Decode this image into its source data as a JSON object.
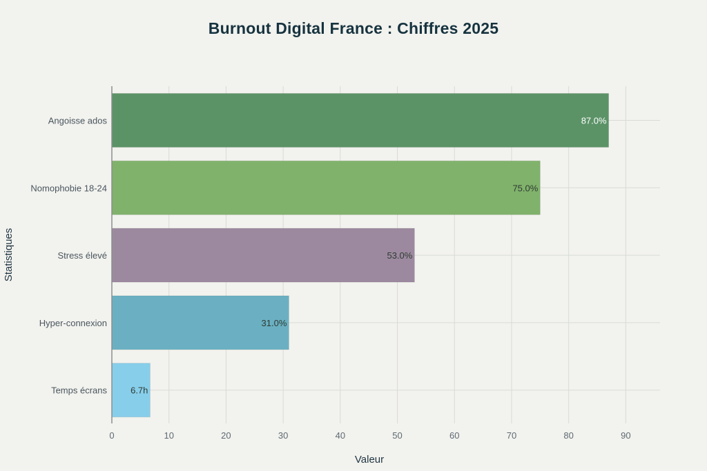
{
  "chart_data": {
    "type": "bar",
    "orientation": "horizontal",
    "title": "Burnout Digital France : Chiffres 2025",
    "xlabel": "Valeur",
    "ylabel": "Statistiques",
    "categories": [
      "Angoisse ados",
      "Nomophobie 18-24",
      "Stress élevé",
      "Hyper-connexion",
      "Temps écrans"
    ],
    "values": [
      87.0,
      75.0,
      53.0,
      31.0,
      6.7
    ],
    "data_labels": [
      "87.0%",
      "75.0%",
      "53.0%",
      "31.0%",
      "6.7h"
    ],
    "colors": [
      "#5b9367",
      "#80b26b",
      "#9c899f",
      "#6ab0c2",
      "#87ceeb"
    ],
    "label_colors": [
      "#ffffff",
      "#2f3b33",
      "#2f3b33",
      "#2f3b33",
      "#2f3b33"
    ],
    "xlim": [
      0,
      96
    ],
    "xticks": [
      0,
      10,
      20,
      30,
      40,
      50,
      60,
      70,
      80,
      90
    ],
    "grid": true,
    "legend": "none"
  }
}
